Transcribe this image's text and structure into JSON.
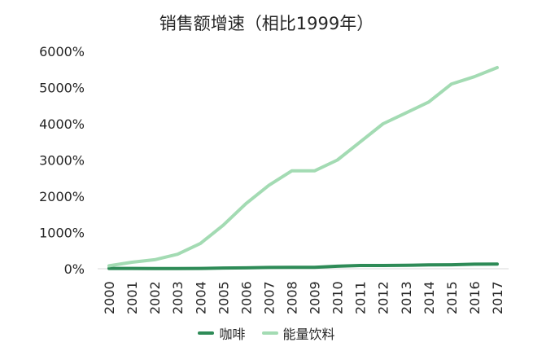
{
  "chart_data": {
    "type": "line",
    "title": "销售额增速（相比1999年）",
    "xlabel": "",
    "ylabel": "",
    "categories": [
      "2000",
      "2001",
      "2002",
      "2003",
      "2004",
      "2005",
      "2006",
      "2007",
      "2008",
      "2009",
      "2010",
      "2011",
      "2012",
      "2013",
      "2014",
      "2015",
      "2016",
      "2017"
    ],
    "series": [
      {
        "name": "咖啡",
        "color": "#2e8b57",
        "values": [
          10,
          10,
          5,
          5,
          10,
          20,
          25,
          35,
          40,
          40,
          70,
          90,
          90,
          95,
          105,
          110,
          125,
          130
        ]
      },
      {
        "name": "能量饮料",
        "color": "#a3dbb3",
        "values": [
          80,
          180,
          250,
          400,
          700,
          1200,
          1800,
          2300,
          2700,
          2700,
          3000,
          3500,
          4000,
          4300,
          4600,
          5100,
          5300,
          5550
        ]
      }
    ],
    "ylim": [
      0,
      6000
    ],
    "yticks": [
      "0%",
      "1000%",
      "2000%",
      "3000%",
      "4000%",
      "5000%",
      "6000%"
    ],
    "ytick_values": [
      0,
      1000,
      2000,
      3000,
      4000,
      5000,
      6000
    ],
    "grid": false,
    "legend_position": "bottom"
  }
}
